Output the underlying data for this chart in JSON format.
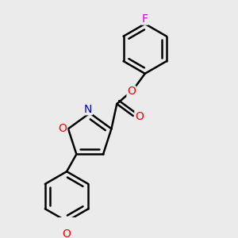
{
  "bg_color": "#ebebeb",
  "bond_color": "#000000",
  "bond_width": 1.8,
  "atom_colors": {
    "O": "#ff0000",
    "N": "#0000cc",
    "F": "#cc00cc",
    "C": "#000000"
  },
  "font_size": 10,
  "fig_size": [
    3.0,
    3.0
  ],
  "dpi": 100,
  "xlim": [
    0.0,
    1.0
  ],
  "ylim": [
    0.0,
    1.0
  ]
}
